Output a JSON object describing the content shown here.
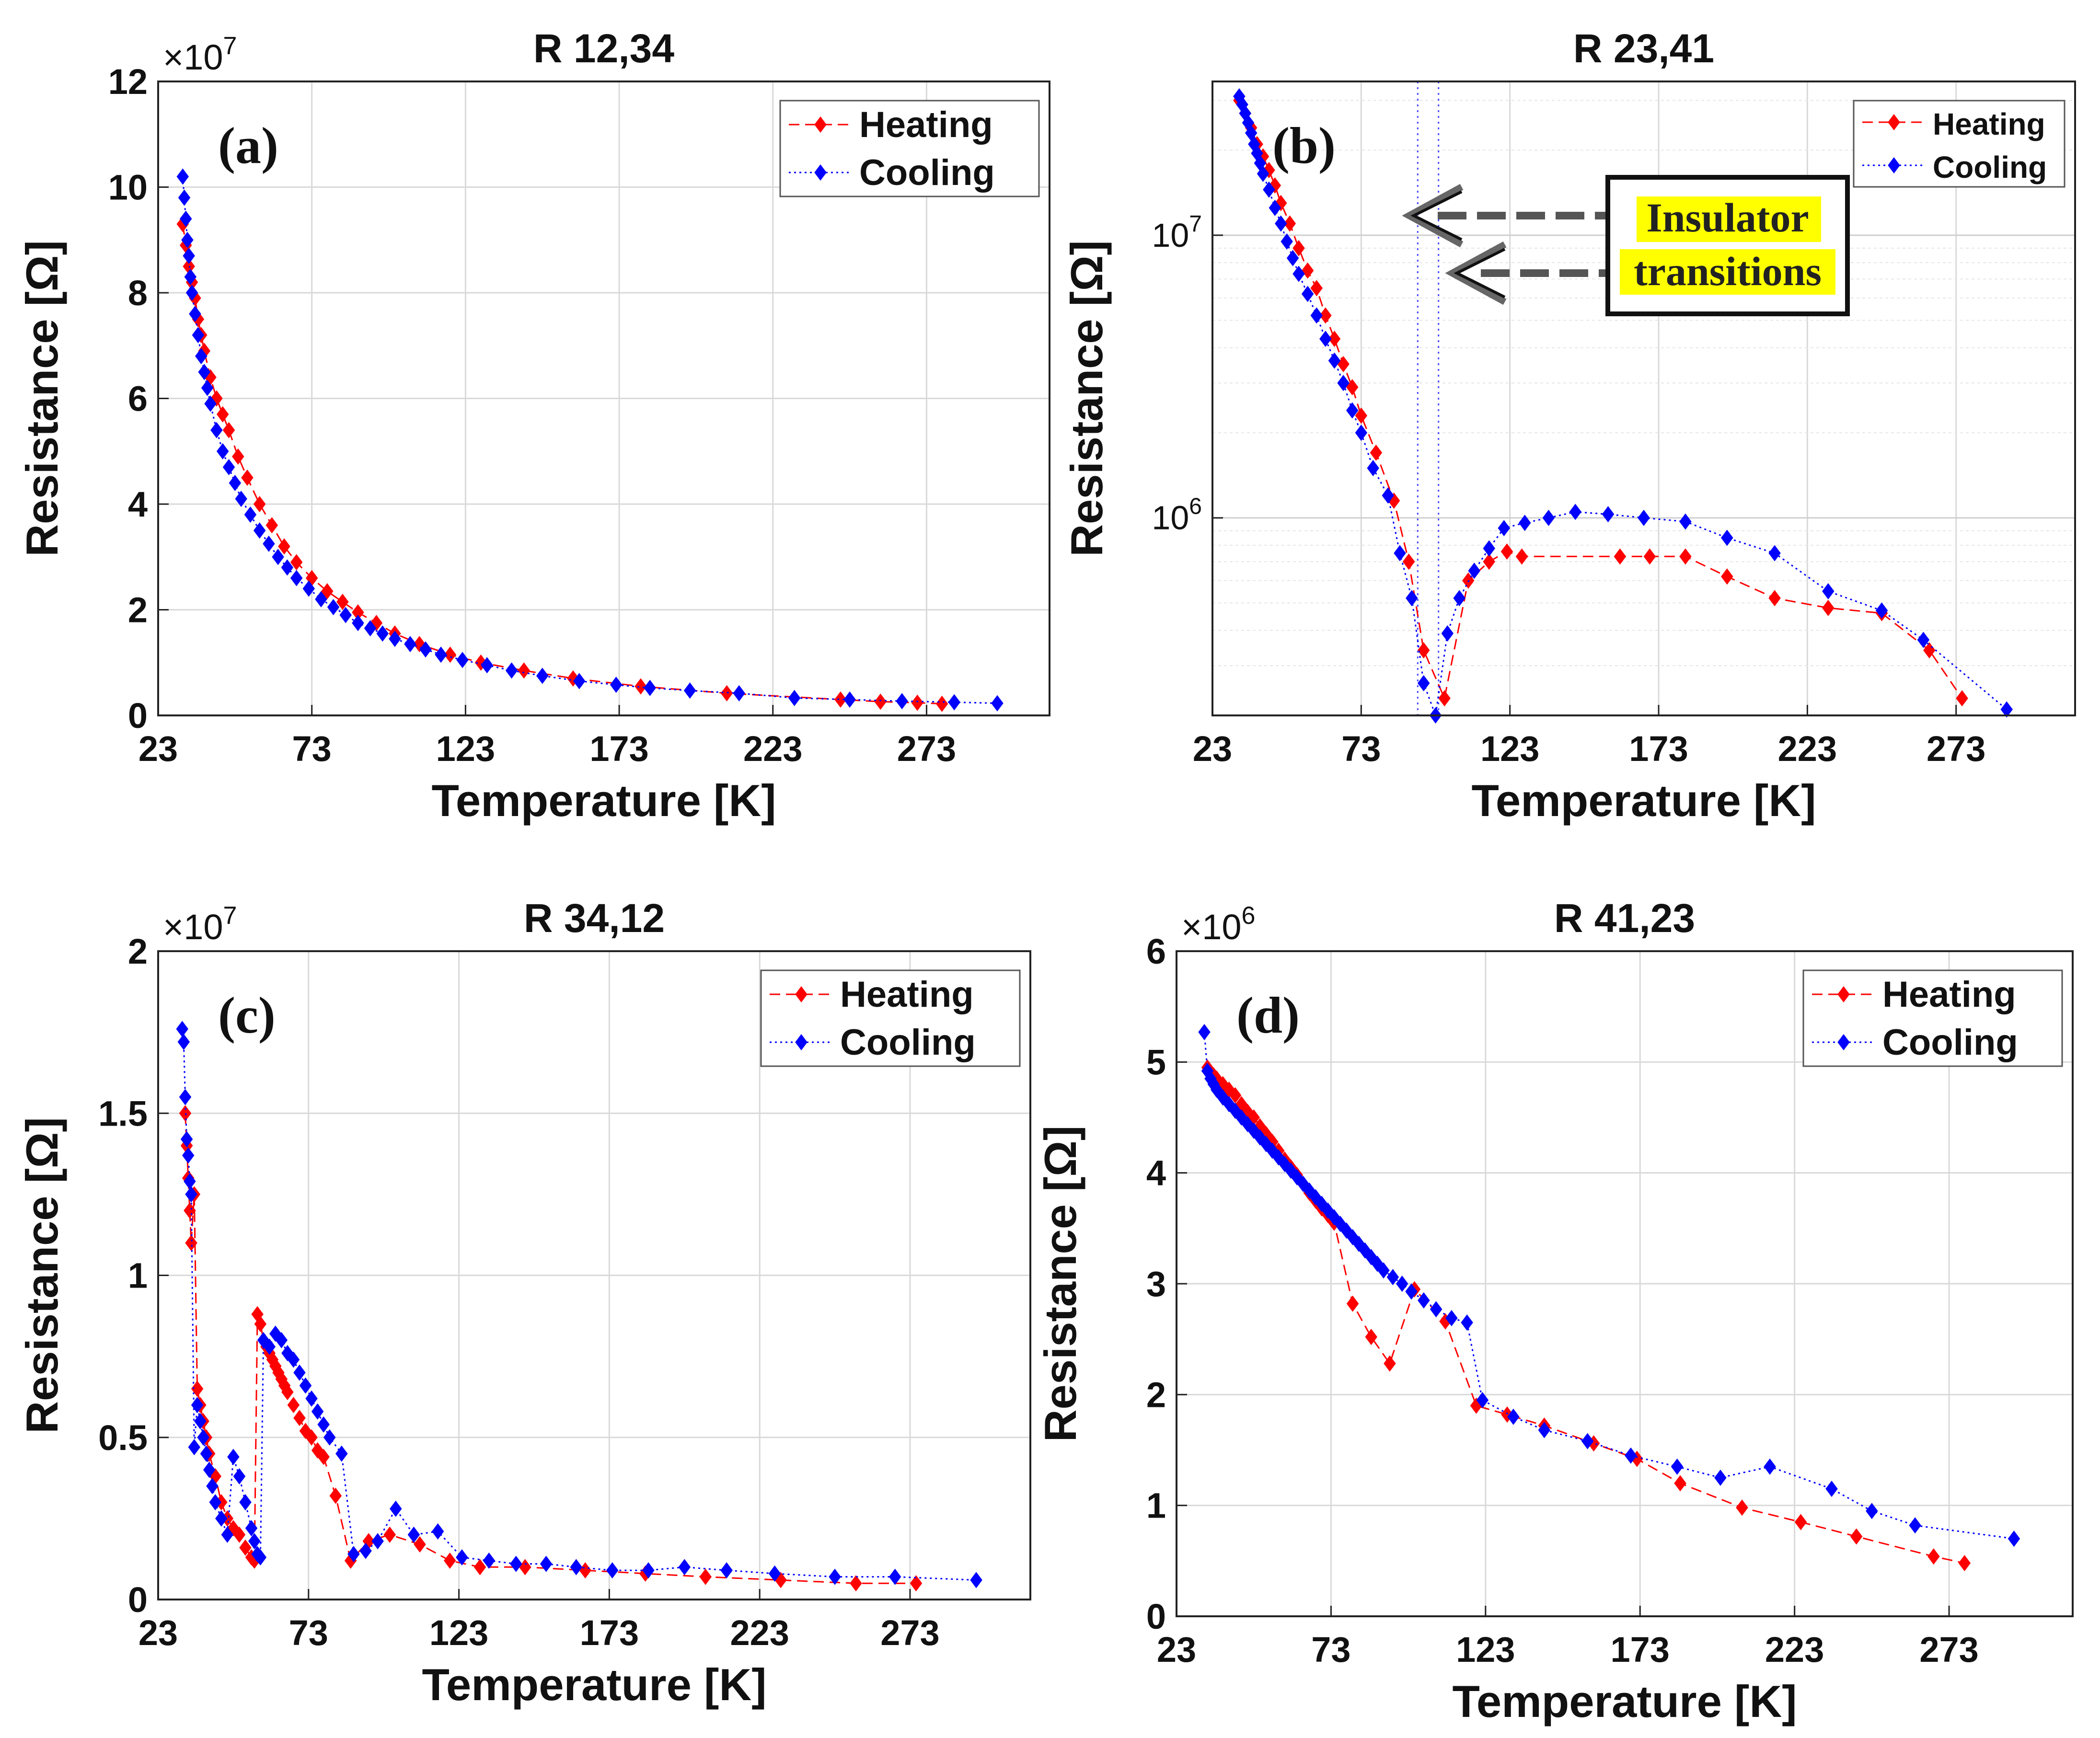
{
  "chart_data": [
    {
      "id": "a",
      "type": "scatter",
      "title": "R 12,34",
      "panel_label": "(a)",
      "xlabel": "Temperature [K]",
      "ylabel": "Resistance [Ω]",
      "y_multiplier": "×10",
      "y_exponent": "7",
      "yscale": "linear",
      "xlim": [
        23,
        313
      ],
      "ylim": [
        0,
        12
      ],
      "xticks": [
        23,
        73,
        123,
        173,
        223,
        273
      ],
      "xtick_labels": [
        "23",
        "73",
        "123",
        "173",
        "223",
        "273"
      ],
      "yticks": [
        0,
        2,
        4,
        6,
        8,
        10,
        12
      ],
      "ytick_labels": [
        "0",
        "2",
        "4",
        "6",
        "8",
        "10",
        "12"
      ],
      "legend": [
        "Heating",
        "Cooling"
      ],
      "legend_position": "top-right",
      "series": [
        {
          "name": "Heating",
          "color": "#ff0000",
          "line": "dashed",
          "x": [
            31,
            32,
            33,
            34,
            35,
            36,
            37,
            38,
            40,
            42,
            44,
            46,
            49,
            52,
            56,
            60,
            64,
            68,
            73,
            78,
            83,
            88,
            94,
            100,
            108,
            118,
            128,
            142,
            158,
            180,
            208,
            245,
            258,
            270,
            278
          ],
          "y": [
            9.3,
            8.9,
            8.5,
            8.2,
            7.9,
            7.5,
            7.2,
            6.9,
            6.4,
            6.0,
            5.7,
            5.4,
            4.9,
            4.5,
            4.0,
            3.6,
            3.2,
            2.9,
            2.6,
            2.35,
            2.15,
            1.95,
            1.75,
            1.55,
            1.35,
            1.15,
            1.0,
            0.85,
            0.7,
            0.55,
            0.42,
            0.3,
            0.26,
            0.24,
            0.22
          ]
        },
        {
          "name": "Cooling",
          "color": "#0000ff",
          "line": "dotted",
          "x": [
            31,
            31.5,
            32,
            32.5,
            33,
            33.5,
            34,
            35,
            36,
            37,
            38,
            39,
            40,
            42,
            44,
            46,
            48,
            50,
            53,
            56,
            59,
            62,
            65,
            68,
            72,
            76,
            80,
            84,
            88,
            92,
            96,
            100,
            105,
            110,
            115,
            122,
            130,
            138,
            148,
            160,
            172,
            183,
            196,
            212,
            230,
            248,
            265,
            282,
            296
          ],
          "y": [
            10.2,
            9.8,
            9.4,
            9.0,
            8.7,
            8.3,
            8.0,
            7.6,
            7.2,
            6.8,
            6.5,
            6.2,
            5.9,
            5.4,
            5.0,
            4.7,
            4.4,
            4.1,
            3.8,
            3.5,
            3.25,
            3.0,
            2.8,
            2.6,
            2.4,
            2.2,
            2.05,
            1.9,
            1.75,
            1.65,
            1.55,
            1.45,
            1.35,
            1.25,
            1.15,
            1.05,
            0.95,
            0.85,
            0.75,
            0.65,
            0.58,
            0.52,
            0.47,
            0.42,
            0.33,
            0.3,
            0.27,
            0.25,
            0.23
          ]
        }
      ]
    },
    {
      "id": "b",
      "type": "scatter",
      "title": "R 23,41",
      "panel_label": "(b)",
      "xlabel": "Temperature [K]",
      "ylabel": "Resistance [Ω]",
      "yscale": "log",
      "xlim": [
        23,
        313
      ],
      "ylim": [
        200000,
        35000000
      ],
      "xticks": [
        23,
        73,
        123,
        173,
        223,
        273
      ],
      "xtick_labels": [
        "23",
        "73",
        "123",
        "173",
        "223",
        "273"
      ],
      "log_major_ticks": [
        1000000,
        10000000
      ],
      "log_major_base": [
        "10",
        "10"
      ],
      "log_major_exponents": [
        "6",
        "7"
      ],
      "legend": [
        "Heating",
        "Cooling"
      ],
      "legend_position": "top-right",
      "vlines": [
        92,
        99
      ],
      "annotation": {
        "line1": "Insulator",
        "line2": "transitions"
      },
      "series": [
        {
          "name": "Heating",
          "color": "#ff0000",
          "line": "dashed",
          "x": [
            32,
            34,
            36,
            38,
            40,
            42,
            44,
            46,
            49,
            52,
            55,
            58,
            61,
            64,
            67,
            70,
            73,
            78,
            84,
            89,
            94,
            101,
            109,
            116,
            122,
            127,
            160,
            170,
            182,
            196,
            212,
            230,
            248,
            264,
            275
          ],
          "y": [
            30000000,
            27000000,
            24000000,
            21000000,
            19000000,
            17000000,
            15000000,
            13000000,
            11000000,
            9000000,
            7500000,
            6500000,
            5200000,
            4300000,
            3500000,
            2900000,
            2300000,
            1700000,
            1150000,
            700000,
            340000,
            230000,
            600000,
            700000,
            760000,
            730000,
            730000,
            730000,
            730000,
            620000,
            520000,
            480000,
            460000,
            340000,
            230000
          ]
        },
        {
          "name": "Cooling",
          "color": "#0000ff",
          "line": "dotted",
          "x": [
            32,
            33,
            34,
            35,
            36,
            37,
            38,
            39,
            40,
            42,
            44,
            46,
            48,
            50,
            52,
            55,
            58,
            61,
            64,
            67,
            70,
            73,
            77,
            82,
            86,
            90,
            94,
            98,
            102,
            106,
            111,
            116,
            121,
            128,
            136,
            145,
            156,
            168,
            182,
            196,
            212,
            230,
            248,
            262,
            290
          ],
          "y": [
            31000000,
            29000000,
            27000000,
            25000000,
            23000000,
            21000000,
            19500000,
            18000000,
            16500000,
            14500000,
            12500000,
            11000000,
            9500000,
            8300000,
            7300000,
            6200000,
            5200000,
            4300000,
            3600000,
            3000000,
            2400000,
            2000000,
            1500000,
            1200000,
            750000,
            520000,
            260000,
            200000,
            390000,
            520000,
            650000,
            780000,
            920000,
            960000,
            1000000,
            1050000,
            1030000,
            1000000,
            970000,
            850000,
            750000,
            550000,
            470000,
            370000,
            210000
          ]
        }
      ]
    },
    {
      "id": "c",
      "type": "scatter",
      "title": "R 34,12",
      "panel_label": "(c)",
      "xlabel": "Temperature [K]",
      "ylabel": "Resistance [Ω]",
      "y_multiplier": "×10",
      "y_exponent": "7",
      "yscale": "linear",
      "xlim": [
        23,
        313
      ],
      "ylim": [
        0,
        2
      ],
      "xticks": [
        23,
        73,
        123,
        173,
        223,
        273
      ],
      "xtick_labels": [
        "23",
        "73",
        "123",
        "173",
        "223",
        "273"
      ],
      "yticks": [
        0,
        0.5,
        1,
        1.5,
        2
      ],
      "ytick_labels": [
        "0",
        "0.5",
        "1",
        "1.5",
        "2"
      ],
      "legend": [
        "Heating",
        "Cooling"
      ],
      "legend_position": "top-right",
      "series": [
        {
          "name": "Heating",
          "color": "#ff0000",
          "line": "dashed",
          "x": [
            32,
            32.5,
            33,
            33.5,
            34,
            35,
            36,
            37,
            38,
            39,
            40,
            42,
            44,
            46,
            48,
            50,
            52,
            54,
            55,
            56,
            57,
            58,
            59,
            60,
            61,
            62,
            63,
            64,
            65,
            66,
            68,
            70,
            72,
            74,
            76,
            78,
            82,
            87,
            93,
            100,
            110,
            120,
            130,
            145,
            165,
            185,
            205,
            230,
            255,
            275
          ],
          "y": [
            1.5,
            1.4,
            1.3,
            1.2,
            1.1,
            1.25,
            0.65,
            0.6,
            0.55,
            0.5,
            0.45,
            0.38,
            0.3,
            0.25,
            0.22,
            0.2,
            0.16,
            0.13,
            0.12,
            0.88,
            0.85,
            0.8,
            0.78,
            0.76,
            0.74,
            0.72,
            0.7,
            0.68,
            0.66,
            0.64,
            0.6,
            0.56,
            0.52,
            0.5,
            0.46,
            0.44,
            0.32,
            0.12,
            0.18,
            0.2,
            0.17,
            0.12,
            0.1,
            0.1,
            0.09,
            0.08,
            0.07,
            0.06,
            0.05,
            0.05
          ]
        },
        {
          "name": "Cooling",
          "color": "#0000ff",
          "line": "dotted",
          "x": [
            31,
            31.5,
            32,
            32.5,
            33,
            33.5,
            34,
            35,
            36,
            37,
            38,
            39,
            40,
            41,
            42,
            44,
            46,
            48,
            50,
            52,
            54,
            55,
            56,
            57,
            58,
            60,
            62,
            64,
            66,
            68,
            70,
            72,
            74,
            76,
            78,
            80,
            84,
            88,
            92,
            96,
            102,
            108,
            116,
            124,
            133,
            142,
            152,
            162,
            174,
            186,
            198,
            212,
            228,
            248,
            268,
            295
          ],
          "y": [
            1.76,
            1.72,
            1.55,
            1.42,
            1.37,
            1.29,
            1.25,
            0.47,
            0.6,
            0.55,
            0.5,
            0.45,
            0.4,
            0.35,
            0.3,
            0.25,
            0.2,
            0.44,
            0.38,
            0.3,
            0.22,
            0.18,
            0.14,
            0.13,
            0.8,
            0.78,
            0.82,
            0.8,
            0.76,
            0.74,
            0.7,
            0.66,
            0.62,
            0.58,
            0.54,
            0.5,
            0.45,
            0.14,
            0.15,
            0.18,
            0.28,
            0.2,
            0.21,
            0.13,
            0.12,
            0.11,
            0.11,
            0.1,
            0.09,
            0.09,
            0.1,
            0.09,
            0.08,
            0.07,
            0.07,
            0.06
          ]
        }
      ]
    },
    {
      "id": "d",
      "type": "scatter",
      "title": "R 41,23",
      "panel_label": "(d)",
      "xlabel": "Temperature [K]",
      "ylabel": "Resistance [Ω]",
      "y_multiplier": "×10",
      "y_exponent": "6",
      "yscale": "linear",
      "xlim": [
        23,
        313
      ],
      "ylim": [
        0,
        6
      ],
      "xticks": [
        23,
        73,
        123,
        173,
        223,
        273
      ],
      "xtick_labels": [
        "23",
        "73",
        "123",
        "173",
        "223",
        "273"
      ],
      "yticks": [
        0,
        1,
        2,
        3,
        4,
        5,
        6
      ],
      "ytick_labels": [
        "0",
        "1",
        "2",
        "3",
        "4",
        "5",
        "6"
      ],
      "legend": [
        "Heating",
        "Cooling"
      ],
      "legend_position": "top-right",
      "series": [
        {
          "name": "Heating",
          "color": "#ff0000",
          "line": "dashed",
          "x": [
            33,
            34,
            35,
            36,
            38,
            40,
            42,
            44,
            46,
            48,
            50,
            52,
            54,
            56,
            58,
            60,
            62,
            64,
            66,
            68,
            70,
            72,
            74,
            80,
            86,
            92,
            100,
            110,
            120,
            130,
            142,
            158,
            172,
            186,
            206,
            225,
            243,
            268,
            278
          ],
          "y": [
            4.95,
            4.9,
            4.88,
            4.85,
            4.8,
            4.75,
            4.7,
            4.62,
            4.55,
            4.5,
            4.42,
            4.35,
            4.28,
            4.2,
            4.12,
            4.05,
            3.98,
            3.9,
            3.82,
            3.75,
            3.68,
            3.62,
            3.55,
            2.82,
            2.52,
            2.28,
            2.95,
            2.66,
            1.9,
            1.82,
            1.72,
            1.56,
            1.42,
            1.2,
            0.98,
            0.85,
            0.72,
            0.54,
            0.48
          ]
        },
        {
          "name": "Cooling",
          "color": "#0000ff",
          "line": "dotted",
          "x": [
            32,
            33,
            34,
            35,
            36,
            38,
            40,
            42,
            44,
            46,
            48,
            50,
            52,
            54,
            56,
            58,
            60,
            62,
            64,
            66,
            68,
            70,
            72,
            74,
            76,
            78,
            80,
            82,
            84,
            86,
            88,
            90,
            93,
            96,
            99,
            103,
            107,
            112,
            117,
            122,
            132,
            142,
            156,
            170,
            185,
            199,
            215,
            235,
            248,
            262,
            294
          ],
          "y": [
            5.27,
            4.92,
            4.85,
            4.8,
            4.75,
            4.68,
            4.62,
            4.56,
            4.5,
            4.44,
            4.38,
            4.32,
            4.26,
            4.2,
            4.14,
            4.08,
            4.02,
            3.96,
            3.9,
            3.84,
            3.78,
            3.72,
            3.66,
            3.6,
            3.54,
            3.48,
            3.42,
            3.36,
            3.3,
            3.24,
            3.18,
            3.12,
            3.06,
            3.0,
            2.93,
            2.85,
            2.77,
            2.69,
            2.65,
            1.95,
            1.8,
            1.68,
            1.58,
            1.45,
            1.35,
            1.25,
            1.35,
            1.15,
            0.95,
            0.82,
            0.7
          ]
        }
      ]
    }
  ]
}
